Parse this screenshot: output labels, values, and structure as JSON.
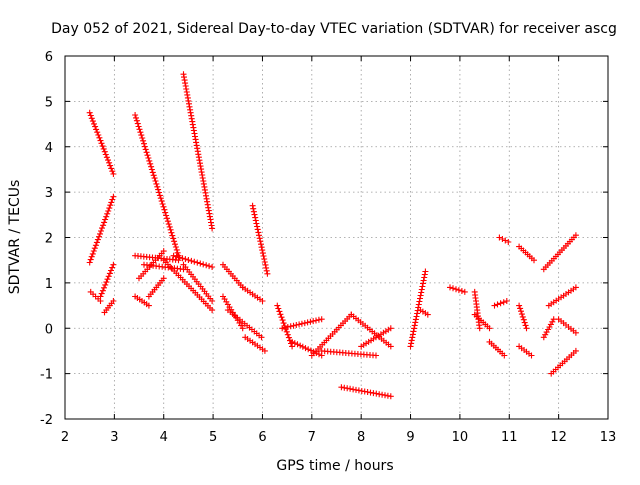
{
  "chart_data": {
    "type": "scatter",
    "title": "Day 052 of 2021, Sidereal Day-to-day VTEC variation (SDTVAR) for receiver ascg",
    "xlabel": "GPS time / hours",
    "ylabel": "SDTVAR / TECUs",
    "xlim": [
      2,
      13
    ],
    "ylim": [
      -2,
      6
    ],
    "xticks": [
      "2",
      "3",
      "4",
      "5",
      "6",
      "7",
      "8",
      "9",
      "10",
      "11",
      "12",
      "13"
    ],
    "yticks": [
      "-2",
      "-1",
      "0",
      "1",
      "2",
      "3",
      "4",
      "5",
      "6"
    ],
    "grid": true,
    "marker": "+",
    "color": "#ff0000",
    "segments": [
      {
        "x0": 2.5,
        "y0": 4.75,
        "x1": 2.98,
        "y1": 3.4
      },
      {
        "x0": 2.5,
        "y0": 1.45,
        "x1": 2.98,
        "y1": 2.9
      },
      {
        "x0": 2.52,
        "y0": 0.8,
        "x1": 2.72,
        "y1": 0.6
      },
      {
        "x0": 2.72,
        "y0": 0.7,
        "x1": 2.98,
        "y1": 1.4
      },
      {
        "x0": 2.8,
        "y0": 0.35,
        "x1": 2.98,
        "y1": 0.6
      },
      {
        "x0": 3.42,
        "y0": 4.7,
        "x1": 4.3,
        "y1": 1.6
      },
      {
        "x0": 3.42,
        "y0": 1.6,
        "x1": 4.3,
        "y1": 1.5
      },
      {
        "x0": 3.42,
        "y0": 0.7,
        "x1": 3.7,
        "y1": 0.5
      },
      {
        "x0": 3.7,
        "y0": 0.7,
        "x1": 4.0,
        "y1": 1.1
      },
      {
        "x0": 3.5,
        "y0": 1.1,
        "x1": 4.0,
        "y1": 1.7
      },
      {
        "x0": 3.6,
        "y0": 1.4,
        "x1": 4.4,
        "y1": 1.3
      },
      {
        "x0": 4.4,
        "y0": 5.6,
        "x1": 4.98,
        "y1": 2.2
      },
      {
        "x0": 4.0,
        "y0": 1.5,
        "x1": 4.98,
        "y1": 0.4
      },
      {
        "x0": 4.2,
        "y0": 1.6,
        "x1": 4.98,
        "y1": 1.35
      },
      {
        "x0": 4.4,
        "y0": 1.4,
        "x1": 4.98,
        "y1": 0.6
      },
      {
        "x0": 5.2,
        "y0": 1.4,
        "x1": 5.6,
        "y1": 0.9
      },
      {
        "x0": 5.2,
        "y0": 0.7,
        "x1": 5.6,
        "y1": 0.0
      },
      {
        "x0": 5.3,
        "y0": 0.4,
        "x1": 5.98,
        "y1": -0.2
      },
      {
        "x0": 5.6,
        "y0": 0.9,
        "x1": 6.0,
        "y1": 0.6
      },
      {
        "x0": 5.65,
        "y0": -0.2,
        "x1": 6.05,
        "y1": -0.5
      },
      {
        "x0": 5.8,
        "y0": 2.7,
        "x1": 6.1,
        "y1": 1.2
      },
      {
        "x0": 6.3,
        "y0": 0.5,
        "x1": 6.6,
        "y1": -0.4
      },
      {
        "x0": 6.4,
        "y0": 0.0,
        "x1": 7.2,
        "y1": 0.2
      },
      {
        "x0": 6.6,
        "y0": -0.3,
        "x1": 7.2,
        "y1": -0.6
      },
      {
        "x0": 7.0,
        "y0": -0.6,
        "x1": 7.8,
        "y1": 0.3
      },
      {
        "x0": 7.2,
        "y0": -0.5,
        "x1": 8.3,
        "y1": -0.6
      },
      {
        "x0": 7.8,
        "y0": 0.3,
        "x1": 8.6,
        "y1": -0.4
      },
      {
        "x0": 7.6,
        "y0": -1.3,
        "x1": 8.6,
        "y1": -1.5
      },
      {
        "x0": 8.0,
        "y0": -0.4,
        "x1": 8.6,
        "y1": 0.0
      },
      {
        "x0": 9.0,
        "y0": -0.4,
        "x1": 9.3,
        "y1": 1.25
      },
      {
        "x0": 9.2,
        "y0": 0.4,
        "x1": 9.35,
        "y1": 0.3
      },
      {
        "x0": 9.8,
        "y0": 0.9,
        "x1": 10.1,
        "y1": 0.8
      },
      {
        "x0": 10.3,
        "y0": 0.3,
        "x1": 10.6,
        "y1": 0.0
      },
      {
        "x0": 10.3,
        "y0": 0.8,
        "x1": 10.4,
        "y1": 0.0
      },
      {
        "x0": 10.6,
        "y0": -0.3,
        "x1": 10.9,
        "y1": -0.6
      },
      {
        "x0": 10.7,
        "y0": 0.5,
        "x1": 10.95,
        "y1": 0.6
      },
      {
        "x0": 10.8,
        "y0": 2.0,
        "x1": 10.98,
        "y1": 1.9
      },
      {
        "x0": 11.2,
        "y0": 1.8,
        "x1": 11.5,
        "y1": 1.5
      },
      {
        "x0": 11.2,
        "y0": 0.5,
        "x1": 11.35,
        "y1": 0.0
      },
      {
        "x0": 11.2,
        "y0": -0.4,
        "x1": 11.45,
        "y1": -0.6
      },
      {
        "x0": 11.7,
        "y0": 1.3,
        "x1": 12.35,
        "y1": 2.05
      },
      {
        "x0": 11.7,
        "y0": -0.2,
        "x1": 11.9,
        "y1": 0.2
      },
      {
        "x0": 11.8,
        "y0": 0.5,
        "x1": 12.35,
        "y1": 0.9
      },
      {
        "x0": 11.85,
        "y0": -1.0,
        "x1": 12.35,
        "y1": -0.5
      },
      {
        "x0": 12.0,
        "y0": 0.2,
        "x1": 12.35,
        "y1": -0.1
      }
    ]
  }
}
